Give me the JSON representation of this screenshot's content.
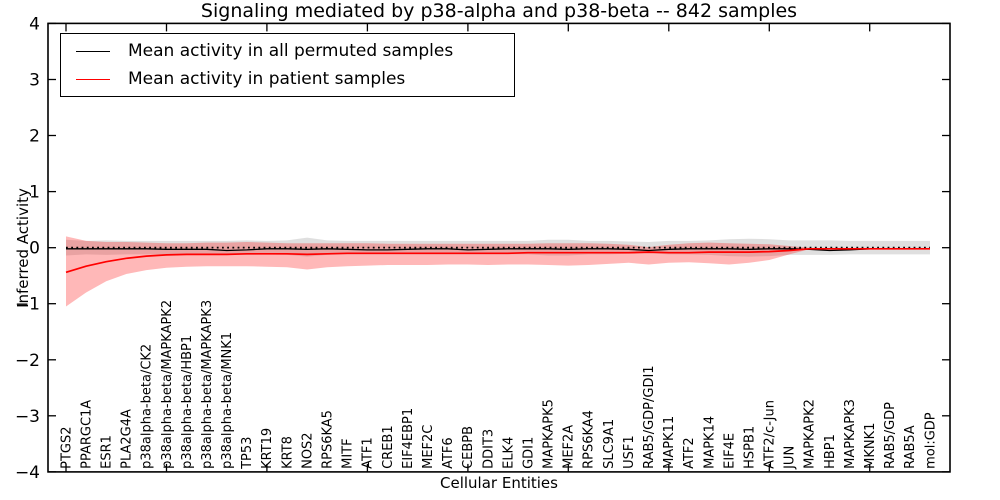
{
  "figure": {
    "title": "Signaling mediated by p38-alpha and p38-beta -- 842 samples",
    "xlabel": "Cellular Entities",
    "ylabel": "Inferred Activity",
    "background_color": "#ffffff",
    "axis_color": "#000000",
    "legend": {
      "position": "upper left",
      "entries": [
        {
          "label": "Mean activity in all permuted samples",
          "color": "#000000"
        },
        {
          "label": "Mean activity in patient samples",
          "color": "#ff0000"
        }
      ]
    }
  },
  "chart_data": {
    "type": "line",
    "title": "Signaling mediated by p38-alpha and p38-beta -- 842 samples",
    "xlabel": "Cellular Entities",
    "ylabel": "Inferred Activity",
    "ylim": [
      -4,
      4
    ],
    "yticks": [
      -4,
      -3,
      -2,
      -1,
      0,
      1,
      2,
      3,
      4
    ],
    "xtick_rotation": 90,
    "grid": false,
    "legend_position": "upper left",
    "reference_line_y": 0,
    "categories": [
      "PTGS2",
      "PPARGC1A",
      "ESR1",
      "PLA2G4A",
      "p38alpha-beta/CK2",
      "p38alpha-beta/MAPKAPK2",
      "p38alpha-beta/HBP1",
      "p38alpha-beta/MAPKAPK3",
      "p38alpha-beta/MNK1",
      "TP53",
      "KRT19",
      "KRT8",
      "NOS2",
      "RPS6KA5",
      "MITF",
      "ATF1",
      "CREB1",
      "EIF4EBP1",
      "MEF2C",
      "ATF6",
      "CEBPB",
      "DDIT3",
      "ELK4",
      "GDI1",
      "MAPKAPK5",
      "MEF2A",
      "RPS6KA4",
      "SLC9A1",
      "USF1",
      "RAB5/GDP/GDI1",
      "MAPK11",
      "ATF2",
      "MAPK14",
      "EIF4E",
      "HSPB1",
      "ATF2/c-Jun",
      "JUN",
      "MAPKAPK2",
      "HBP1",
      "MAPKAPK3",
      "MKNK1",
      "RAB5/GDP",
      "RAB5A",
      "mol:GDP"
    ],
    "series": [
      {
        "name": "Mean activity in all permuted samples",
        "color": "#000000",
        "style": "solid",
        "values": [
          -0.02,
          -0.02,
          -0.02,
          -0.02,
          -0.02,
          -0.03,
          -0.03,
          -0.03,
          -0.05,
          -0.04,
          -0.02,
          -0.02,
          -0.03,
          -0.02,
          -0.03,
          -0.04,
          -0.04,
          -0.03,
          -0.02,
          -0.02,
          -0.04,
          -0.03,
          -0.02,
          -0.02,
          -0.02,
          -0.03,
          -0.02,
          -0.02,
          -0.03,
          -0.05,
          -0.03,
          -0.02,
          -0.02,
          -0.02,
          -0.03,
          -0.02,
          -0.02,
          -0.03,
          -0.05,
          -0.04,
          -0.02,
          -0.02,
          -0.02,
          -0.02
        ]
      },
      {
        "name": "Mean activity in patient samples",
        "color": "#ff0000",
        "style": "solid",
        "values": [
          -0.44,
          -0.33,
          -0.25,
          -0.19,
          -0.15,
          -0.13,
          -0.12,
          -0.12,
          -0.12,
          -0.11,
          -0.11,
          -0.11,
          -0.12,
          -0.11,
          -0.1,
          -0.1,
          -0.1,
          -0.1,
          -0.1,
          -0.1,
          -0.1,
          -0.1,
          -0.1,
          -0.09,
          -0.09,
          -0.09,
          -0.09,
          -0.09,
          -0.09,
          -0.08,
          -0.09,
          -0.09,
          -0.08,
          -0.08,
          -0.08,
          -0.07,
          -0.05,
          -0.02,
          -0.02,
          -0.02,
          -0.02,
          -0.02,
          -0.02,
          -0.02
        ]
      }
    ],
    "bands": [
      {
        "name": "permuted samples range",
        "fill": "rgba(110,110,110,0.22)",
        "upper": [
          0.14,
          0.12,
          0.13,
          0.12,
          0.12,
          0.12,
          0.12,
          0.12,
          0.12,
          0.13,
          0.12,
          0.13,
          0.18,
          0.13,
          0.12,
          0.12,
          0.12,
          0.12,
          0.12,
          0.12,
          0.12,
          0.12,
          0.12,
          0.12,
          0.14,
          0.14,
          0.12,
          0.12,
          0.11,
          0.1,
          0.12,
          0.12,
          0.13,
          0.15,
          0.16,
          0.15,
          0.13,
          0.13,
          0.13,
          0.12,
          0.12,
          0.12,
          0.12,
          0.12
        ],
        "lower": [
          -0.14,
          -0.12,
          -0.13,
          -0.12,
          -0.12,
          -0.12,
          -0.12,
          -0.12,
          -0.12,
          -0.13,
          -0.12,
          -0.13,
          -0.16,
          -0.13,
          -0.12,
          -0.12,
          -0.12,
          -0.12,
          -0.12,
          -0.12,
          -0.12,
          -0.12,
          -0.12,
          -0.12,
          -0.14,
          -0.14,
          -0.12,
          -0.12,
          -0.11,
          -0.1,
          -0.12,
          -0.12,
          -0.13,
          -0.15,
          -0.16,
          -0.15,
          -0.13,
          -0.13,
          -0.13,
          -0.12,
          -0.12,
          -0.12,
          -0.12,
          -0.12
        ]
      },
      {
        "name": "patient samples range",
        "fill": "rgba(255,40,40,0.33)",
        "upper": [
          0.2,
          0.12,
          0.1,
          0.1,
          0.09,
          0.08,
          0.08,
          0.09,
          0.09,
          0.1,
          0.09,
          0.08,
          0.08,
          0.08,
          0.08,
          0.08,
          0.07,
          0.07,
          0.07,
          0.07,
          0.07,
          0.07,
          0.07,
          0.07,
          0.08,
          0.08,
          0.08,
          0.07,
          0.05,
          0.01,
          0.05,
          0.08,
          0.09,
          0.08,
          0.07,
          0.06,
          0.03,
          0.0,
          null,
          null,
          null,
          null,
          null,
          null
        ],
        "lower": [
          -1.05,
          -0.8,
          -0.6,
          -0.47,
          -0.4,
          -0.36,
          -0.34,
          -0.33,
          -0.33,
          -0.33,
          -0.34,
          -0.35,
          -0.39,
          -0.35,
          -0.33,
          -0.32,
          -0.31,
          -0.31,
          -0.31,
          -0.3,
          -0.3,
          -0.31,
          -0.3,
          -0.3,
          -0.31,
          -0.32,
          -0.31,
          -0.29,
          -0.27,
          -0.3,
          -0.27,
          -0.26,
          -0.28,
          -0.3,
          -0.27,
          -0.22,
          -0.12,
          -0.03,
          null,
          null,
          null,
          null,
          null,
          null
        ]
      }
    ]
  }
}
